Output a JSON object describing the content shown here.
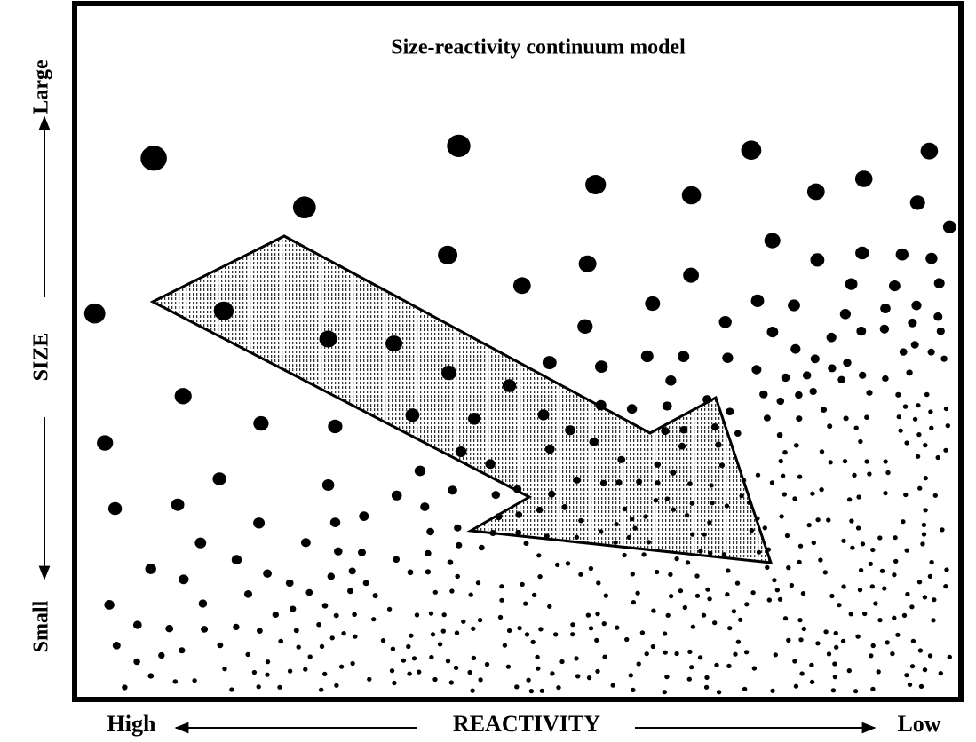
{
  "title": "Size-reactivity continuum model",
  "y_axis": {
    "top": "Large",
    "middle": "SIZE",
    "bottom": "Small"
  },
  "x_axis": {
    "left": "High",
    "middle": "REACTIVITY",
    "right": "Low"
  }
}
